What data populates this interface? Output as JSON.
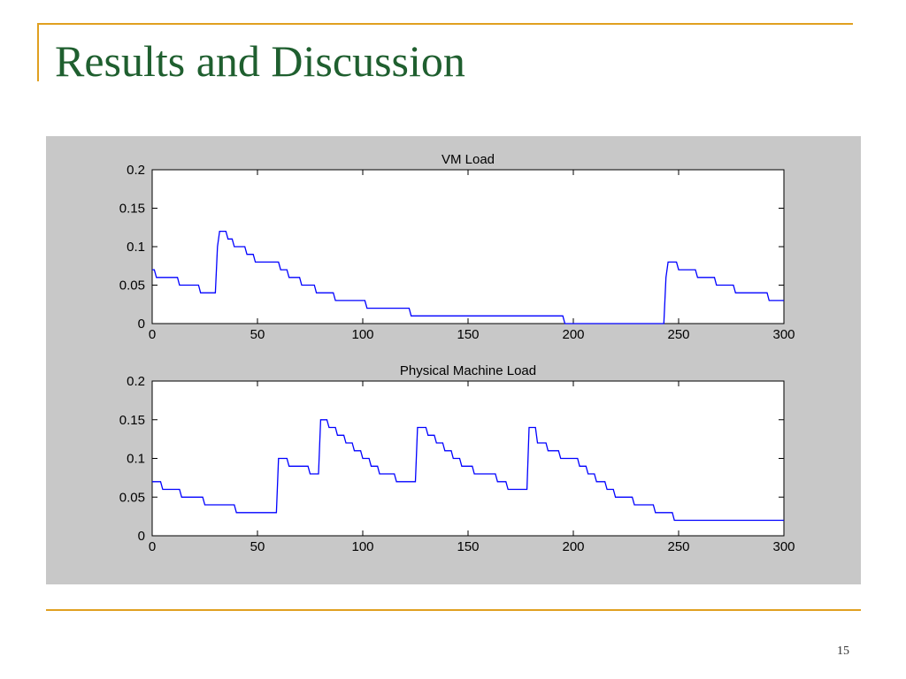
{
  "slide": {
    "title": "Results and Discussion",
    "page_number": "15",
    "accent_color": "#e0a020",
    "title_color": "#1f5f2f",
    "figure_background": "#c8c8c8"
  },
  "chart_data": [
    {
      "type": "line",
      "title": "VM Load",
      "xlabel": "",
      "ylabel": "",
      "xlim": [
        0,
        300
      ],
      "ylim": [
        0,
        0.2
      ],
      "x_ticks": [
        "0",
        "50",
        "100",
        "150",
        "200",
        "250",
        "300"
      ],
      "y_ticks": [
        "0",
        "0.05",
        "0.1",
        "0.15",
        "0.2"
      ],
      "grid": false,
      "line_color": "#0000ff",
      "series": [
        {
          "x": [
            0,
            1,
            2,
            12,
            13,
            22,
            23,
            30,
            31,
            32,
            35,
            36,
            38,
            39,
            41,
            42,
            44,
            45,
            48,
            49,
            51,
            52,
            60,
            61,
            64,
            65,
            70,
            71,
            77,
            78,
            86,
            87,
            101,
            102,
            122,
            123,
            145,
            146,
            195,
            196,
            243,
            244,
            245,
            246,
            249,
            250,
            258,
            259,
            267,
            268,
            276,
            277,
            292,
            293,
            300
          ],
          "y": [
            0.07,
            0.07,
            0.06,
            0.06,
            0.05,
            0.05,
            0.04,
            0.04,
            0.1,
            0.12,
            0.12,
            0.11,
            0.11,
            0.1,
            0.1,
            0.1,
            0.1,
            0.09,
            0.09,
            0.08,
            0.08,
            0.08,
            0.08,
            0.07,
            0.07,
            0.06,
            0.06,
            0.05,
            0.05,
            0.04,
            0.04,
            0.03,
            0.03,
            0.02,
            0.02,
            0.01,
            0.01,
            0.01,
            0.01,
            0,
            0,
            0.06,
            0.08,
            0.08,
            0.08,
            0.07,
            0.07,
            0.06,
            0.06,
            0.05,
            0.05,
            0.04,
            0.04,
            0.03,
            0.03
          ]
        }
      ]
    },
    {
      "type": "line",
      "title": "Physical Machine Load",
      "xlabel": "",
      "ylabel": "",
      "xlim": [
        0,
        300
      ],
      "ylim": [
        0,
        0.2
      ],
      "x_ticks": [
        "0",
        "50",
        "100",
        "150",
        "200",
        "250",
        "300"
      ],
      "y_ticks": [
        "0",
        "0.05",
        "0.1",
        "0.15",
        "0.2"
      ],
      "grid": false,
      "line_color": "#0000ff",
      "series": [
        {
          "x": [
            0,
            4,
            5,
            13,
            14,
            24,
            25,
            39,
            40,
            59,
            60,
            64,
            65,
            74,
            75,
            79,
            80,
            83,
            84,
            87,
            88,
            91,
            92,
            95,
            96,
            99,
            100,
            103,
            104,
            107,
            108,
            115,
            116,
            125,
            126,
            130,
            131,
            134,
            135,
            138,
            139,
            142,
            143,
            146,
            147,
            152,
            153,
            163,
            164,
            168,
            169,
            178,
            179,
            182,
            183,
            187,
            188,
            193,
            194,
            202,
            203,
            206,
            207,
            210,
            211,
            215,
            216,
            219,
            220,
            228,
            229,
            238,
            239,
            247,
            248,
            261,
            262,
            280,
            281,
            300
          ],
          "y": [
            0.07,
            0.07,
            0.06,
            0.06,
            0.05,
            0.05,
            0.04,
            0.04,
            0.03,
            0.03,
            0.1,
            0.1,
            0.09,
            0.09,
            0.08,
            0.08,
            0.15,
            0.15,
            0.14,
            0.14,
            0.13,
            0.13,
            0.12,
            0.12,
            0.11,
            0.11,
            0.1,
            0.1,
            0.09,
            0.09,
            0.08,
            0.08,
            0.07,
            0.07,
            0.14,
            0.14,
            0.13,
            0.13,
            0.12,
            0.12,
            0.11,
            0.11,
            0.1,
            0.1,
            0.09,
            0.09,
            0.08,
            0.08,
            0.07,
            0.07,
            0.06,
            0.06,
            0.14,
            0.14,
            0.12,
            0.12,
            0.11,
            0.11,
            0.1,
            0.1,
            0.09,
            0.09,
            0.08,
            0.08,
            0.07,
            0.07,
            0.06,
            0.06,
            0.05,
            0.05,
            0.04,
            0.04,
            0.03,
            0.03,
            0.02,
            0.02,
            0.02,
            0.02,
            0.02,
            0.02
          ]
        }
      ]
    }
  ]
}
